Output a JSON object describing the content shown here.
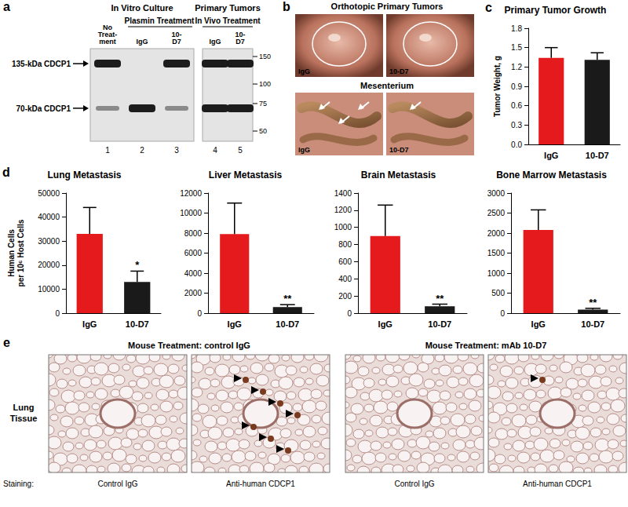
{
  "panel_a": {
    "panel": "a",
    "in_vitro": "In Vitro Culture",
    "primary": "Primary Tumors",
    "plasmin": "Plasmin Treatment",
    "in_vivo": "In Vivo Treatment",
    "band_labels": [
      "135-kDa CDCP1",
      "70-kDa CDCP1"
    ],
    "markers": [
      150,
      100,
      75,
      50
    ],
    "lanes": [
      {
        "number": 1,
        "label": "No Treat-ment",
        "bands": [
          "135-kDa CDCP1"
        ],
        "weak_bands": [
          "70-kDa CDCP1"
        ]
      },
      {
        "number": 2,
        "label": "IgG",
        "bands": [
          "70-kDa CDCP1"
        ],
        "weak_bands": []
      },
      {
        "number": 3,
        "label": "10-D7",
        "bands": [
          "135-kDa CDCP1"
        ],
        "weak_bands": [
          "70-kDa CDCP1"
        ]
      },
      {
        "number": 4,
        "label": "IgG",
        "bands": [
          "135-kDa CDCP1",
          "70-kDa CDCP1"
        ],
        "weak_bands": []
      },
      {
        "number": 5,
        "label": "10-D7",
        "bands": [
          "135-kDa CDCP1",
          "70-kDa CDCP1"
        ],
        "weak_bands": []
      }
    ]
  },
  "panel_b": {
    "panel": "b",
    "title": "Orthotopic Primary Tumors",
    "subtitle": "Mesenterium",
    "tumor_photos": [
      {
        "label": "IgG"
      },
      {
        "label": "10-D7"
      }
    ],
    "mesenterium_photos": [
      {
        "label": "IgG",
        "arrows": 3
      },
      {
        "label": "10-D7",
        "arrows": 1
      }
    ]
  },
  "panel_e": {
    "panel": "e",
    "row_label": "Lung Tissue",
    "staining_label": "Staining:",
    "groups": [
      {
        "title": "Mouse Treatment: control IgG",
        "images": [
          {
            "staining": "Control IgG",
            "arrowheads": 0
          },
          {
            "staining": "Anti-human CDCP1",
            "arrowheads": 7
          }
        ]
      },
      {
        "title": "Mouse Treatment: mAb 10-D7",
        "images": [
          {
            "staining": "Control IgG",
            "arrowheads": 0
          },
          {
            "staining": "Anti-human CDCP1",
            "arrowheads": 1
          }
        ]
      }
    ]
  },
  "chart_data": [
    {
      "panel": "c",
      "type": "bar",
      "title": "Primary Tumor Growth",
      "y_label": "Tumor Weight, g",
      "categories": [
        "IgG",
        "10-D7"
      ],
      "values": [
        1.34,
        1.31
      ],
      "error": [
        0.16,
        0.11
      ],
      "colors": [
        "#e41a1c",
        "#1a1a1a"
      ],
      "ylim": [
        0,
        1.8
      ],
      "yticks": [
        {
          "value": 0,
          "label": "0.0"
        },
        0.3,
        0.6,
        0.9,
        1.2,
        1.5,
        1.8
      ],
      "grid": false
    },
    {
      "panel": "d",
      "type": "bar",
      "title": "Lung Metastasis",
      "y_label": "Human Cells\nper 10⁶ Host Cells",
      "categories": [
        "IgG",
        "10-D7"
      ],
      "values": [
        33000,
        13000
      ],
      "error": [
        11000,
        4500
      ],
      "annotations": [
        null,
        "*"
      ],
      "colors": [
        "#e41a1c",
        "#1a1a1a"
      ],
      "ylim": [
        0,
        50000
      ],
      "yticks": [
        0,
        10000,
        20000,
        30000,
        40000,
        50000
      ],
      "grid": false
    },
    {
      "type": "bar",
      "title": "Liver Metastasis",
      "categories": [
        "IgG",
        "10-D7"
      ],
      "values": [
        7900,
        600
      ],
      "error": [
        3100,
        250
      ],
      "annotations": [
        null,
        "**"
      ],
      "colors": [
        "#e41a1c",
        "#1a1a1a"
      ],
      "ylim": [
        0,
        12000
      ],
      "yticks": [
        0,
        2000,
        4000,
        6000,
        8000,
        10000,
        12000
      ],
      "grid": false
    },
    {
      "type": "bar",
      "title": "Brain Metastasis",
      "categories": [
        "IgG",
        "10-D7"
      ],
      "values": [
        900,
        80
      ],
      "error": [
        360,
        25
      ],
      "annotations": [
        null,
        "**"
      ],
      "colors": [
        "#e41a1c",
        "#1a1a1a"
      ],
      "ylim": [
        0,
        1400
      ],
      "yticks": [
        0,
        200,
        400,
        600,
        800,
        1000,
        1200,
        1400
      ],
      "grid": false
    },
    {
      "type": "bar",
      "title": "Bone Marrow Metastasis",
      "categories": [
        "IgG",
        "10-D7"
      ],
      "values": [
        2080,
        90
      ],
      "error": [
        500,
        30
      ],
      "annotations": [
        null,
        "**"
      ],
      "colors": [
        "#e41a1c",
        "#1a1a1a"
      ],
      "ylim": [
        0,
        3000
      ],
      "yticks": [
        0,
        500,
        1000,
        1500,
        2000,
        2500,
        3000
      ],
      "grid": false
    }
  ]
}
